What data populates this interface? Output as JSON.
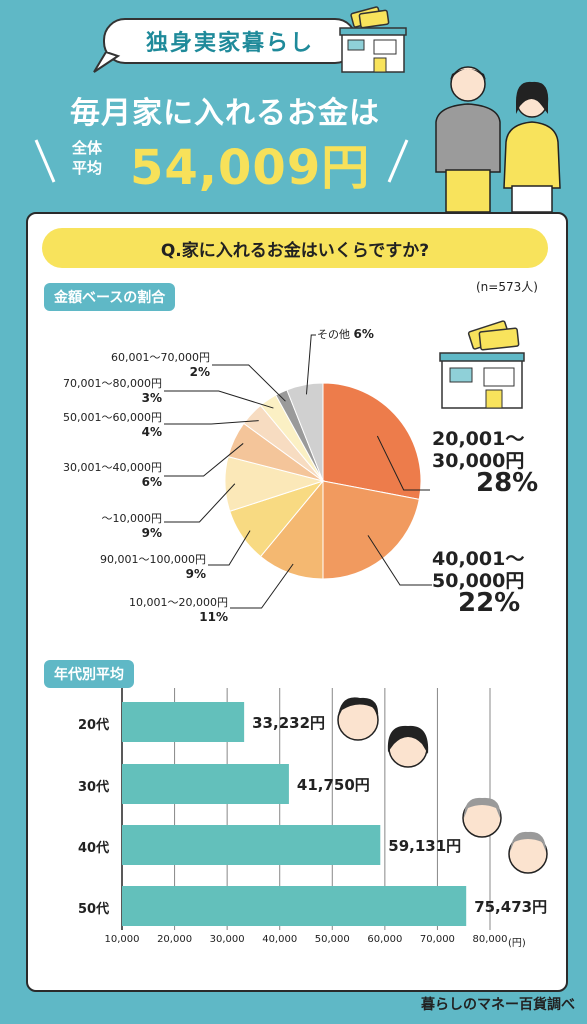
{
  "header": {
    "bubble_title": "独身実家暮らし",
    "headline": "毎月家に入れるお金は",
    "avg_label": "全体平均",
    "avg_value": "54,009円"
  },
  "question": "Q.家に入れるお金はいくらですか?",
  "section_pie": "金額ベースの割合",
  "sample_size": "(n=573人)",
  "section_bar": "年代別平均",
  "footer": "暮らしのマネー百貨調べ",
  "colors": {
    "teal": "#5fb8c6",
    "bar": "#63c0bb",
    "yellow": "#f8e35c",
    "orange": "#f08b55"
  },
  "chart_data": [
    {
      "type": "pie",
      "title": "金額ベースの割合",
      "slices": [
        {
          "label": "20,001〜30,000円",
          "value": 28,
          "pct": "28%",
          "color": "#ed7c4b"
        },
        {
          "label": "40,001〜50,000円",
          "value": 22,
          "pct": "22%",
          "color": "#f19a5f"
        },
        {
          "label": "10,001〜20,000円",
          "value": 11,
          "pct": "11%",
          "color": "#f4b871"
        },
        {
          "label": "90,001〜100,000円",
          "value": 9,
          "pct": "9%",
          "color": "#f8da82"
        },
        {
          "label": "〜10,000円",
          "value": 9,
          "pct": "9%",
          "color": "#fbe8b8"
        },
        {
          "label": "30,001〜40,000円",
          "value": 6,
          "pct": "6%",
          "color": "#f4c59a"
        },
        {
          "label": "50,001〜60,000円",
          "value": 4,
          "pct": "4%",
          "color": "#f7dcc1"
        },
        {
          "label": "70,001〜80,000円",
          "value": 3,
          "pct": "3%",
          "color": "#fbf0c4"
        },
        {
          "label": "60,001〜70,000円",
          "value": 2,
          "pct": "2%",
          "color": "#9a9a9a"
        },
        {
          "label": "その他",
          "value": 6,
          "pct": "6%",
          "color": "#d0d0d0"
        }
      ]
    },
    {
      "type": "bar",
      "title": "年代別平均",
      "orientation": "horizontal",
      "categories": [
        "20代",
        "30代",
        "40代",
        "50代"
      ],
      "values": [
        33232,
        41750,
        59131,
        75473
      ],
      "value_labels": [
        "33,232円",
        "41,750円",
        "59,131円",
        "75,473円"
      ],
      "xlim": [
        10000,
        80000
      ],
      "xticks": [
        "10,000",
        "20,000",
        "30,000",
        "40,000",
        "50,000",
        "60,000",
        "70,000",
        "80,000"
      ],
      "xunit": "(円)"
    }
  ]
}
